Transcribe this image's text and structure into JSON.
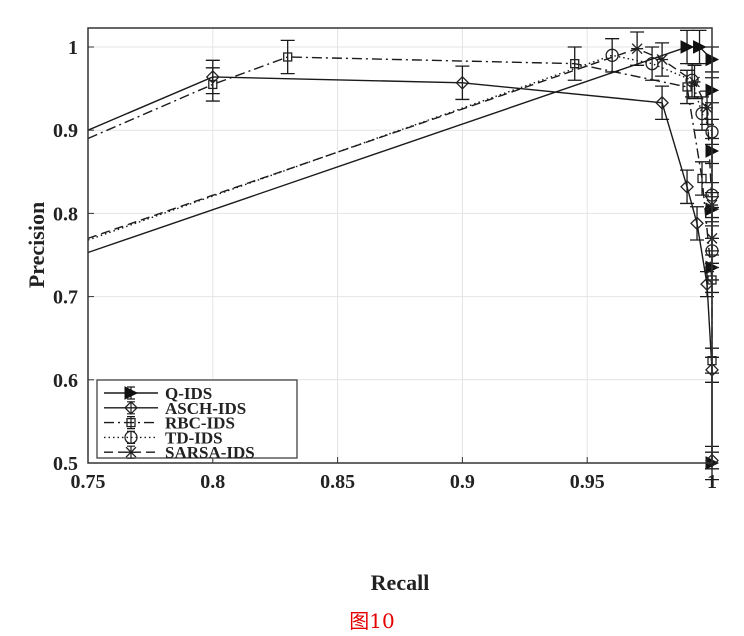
{
  "chart_data": {
    "type": "line",
    "title": "",
    "xlabel": "Recall",
    "ylabel": "Precision",
    "xlim": [
      0.75,
      1
    ],
    "ylim": [
      0.5,
      1.02
    ],
    "grid": true,
    "legend_position": "bottom-left",
    "xticks": [
      "0.75",
      "0.8",
      "0.85",
      "0.9",
      "0.95",
      "1"
    ],
    "yticks": [
      "0.5",
      "0.6",
      "0.7",
      "0.8",
      "0.9",
      "1"
    ],
    "caption": "图10",
    "series": [
      {
        "name": "Q-IDS",
        "style": "solid",
        "marker": "triangle-right",
        "x": [
          0.75,
          0.99,
          0.995,
          1,
          1,
          1,
          1,
          1,
          1
        ],
        "y": [
          0.753,
          1.0,
          1.0,
          0.985,
          0.948,
          0.875,
          0.805,
          0.735,
          0.5
        ],
        "err": [
          0,
          0.02,
          0.02,
          0.015,
          0.015,
          0.015,
          0.015,
          0.015,
          0.02
        ]
      },
      {
        "name": "ASCH-IDS",
        "style": "solid",
        "marker": "diamond",
        "x": [
          0.75,
          0.8,
          0.9,
          0.98,
          0.99,
          0.994,
          0.998,
          1,
          1
        ],
        "y": [
          0.9,
          0.964,
          0.957,
          0.933,
          0.832,
          0.788,
          0.715,
          0.612,
          0.503
        ],
        "err": [
          0,
          0.02,
          0.02,
          0.02,
          0.02,
          0.02,
          0.015,
          0.015,
          0.01
        ]
      },
      {
        "name": "RBC-IDS",
        "style": "dashdot",
        "marker": "square",
        "x": [
          0.75,
          0.8,
          0.83,
          0.945,
          0.99,
          0.996,
          1,
          1
        ],
        "y": [
          0.89,
          0.955,
          0.988,
          0.98,
          0.952,
          0.842,
          0.72,
          0.623
        ],
        "err": [
          0,
          0.02,
          0.02,
          0.02,
          0.02,
          0.02,
          0.015,
          0.015
        ]
      },
      {
        "name": "TD-IDS",
        "style": "dotted",
        "marker": "circle",
        "x": [
          0.75,
          0.96,
          0.976,
          0.992,
          0.996,
          1,
          1,
          1
        ],
        "y": [
          0.768,
          0.99,
          0.98,
          0.96,
          0.92,
          0.898,
          0.822,
          0.755
        ],
        "err": [
          0,
          0.02,
          0.02,
          0.02,
          0.02,
          0.015,
          0.015,
          0.015
        ]
      },
      {
        "name": "SARSA-IDS",
        "style": "dashed",
        "marker": "star",
        "x": [
          0.75,
          0.97,
          0.98,
          0.993,
          0.998,
          1,
          1
        ],
        "y": [
          0.77,
          0.998,
          0.985,
          0.958,
          0.927,
          0.81,
          0.77
        ],
        "err": [
          0,
          0.02,
          0.02,
          0.02,
          0.02,
          0.015,
          0.015
        ]
      }
    ]
  }
}
